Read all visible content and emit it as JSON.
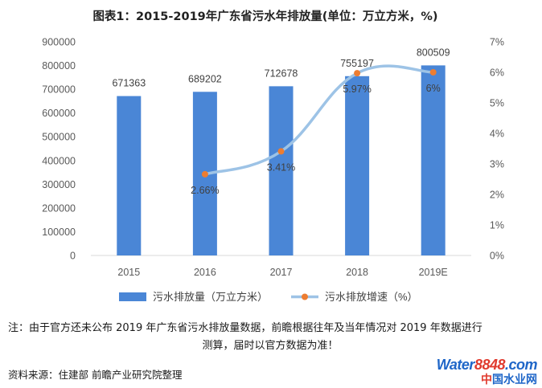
{
  "chart_data": {
    "type": "bar+line",
    "title": "图表1：2015-2019年广东省污水年排放量(单位：万立方米，%)",
    "categories": [
      "2015",
      "2016",
      "2017",
      "2018",
      "2019E"
    ],
    "series": [
      {
        "name": "污水排放量（万立方米）",
        "type": "bar",
        "axis": "left",
        "values": [
          671363,
          689202,
          712678,
          755197,
          800509
        ],
        "labels": [
          "671363",
          "689202",
          "712678",
          "755197",
          "800509"
        ],
        "color": "#4a86d6"
      },
      {
        "name": "污水排放增速（%）",
        "type": "line",
        "axis": "right",
        "values": [
          null,
          2.66,
          3.41,
          5.97,
          6.0
        ],
        "labels": [
          "",
          "2.66%",
          "3.41%",
          "5.97%",
          "6%"
        ],
        "color": "#9dc3e6",
        "marker_color": "#ed7d31"
      }
    ],
    "y_left": {
      "min": 0,
      "max": 900000,
      "ticks": [
        "0",
        "100000",
        "200000",
        "300000",
        "400000",
        "500000",
        "600000",
        "700000",
        "800000",
        "900000"
      ]
    },
    "y_right": {
      "min": 0,
      "max": 7,
      "ticks": [
        "0%",
        "1%",
        "2%",
        "3%",
        "4%",
        "5%",
        "6%",
        "7%"
      ]
    },
    "grid": false,
    "legend_position": "bottom"
  },
  "note": {
    "line1": "注：由于官方还未公布 2019 年广东省污水排放量数据，前瞻根据往年及当年情况对 2019 年数据进行",
    "line2": "测算，届时以官方数据为准！"
  },
  "source": "资料来源：住建部 前瞻产业研究院整理",
  "logo": {
    "brand_a": "Water",
    "brand_b": "8848",
    "brand_c": ".com",
    "sub_a": "中",
    "sub_b": "国水业网"
  }
}
